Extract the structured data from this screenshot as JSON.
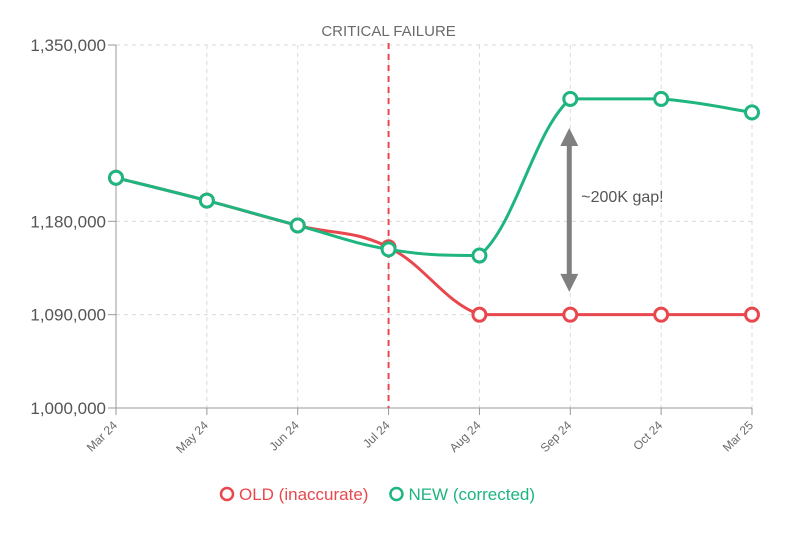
{
  "chart_data": {
    "type": "line",
    "title": "",
    "xlabel": "",
    "ylabel": "",
    "categories": [
      "Mar 24",
      "May 24",
      "Jun 24",
      "Jul 24",
      "Aug 24",
      "Sep 24",
      "Oct 24",
      "Mar 25"
    ],
    "ylim": [
      1000000,
      1350000
    ],
    "yticks": [
      1000000,
      1090000,
      1180000,
      1350000
    ],
    "ytick_labels": [
      "1,000,000",
      "1,090,000",
      "1,180,000",
      "1,350,000"
    ],
    "grid": true,
    "series": [
      {
        "name": "OLD (inaccurate)",
        "color": "#e8484d",
        "values": [
          1222000,
          1200000,
          1176000,
          1155000,
          1090000,
          1090000,
          1090000,
          1090000
        ]
      },
      {
        "name": "NEW (corrected)",
        "color": "#1fb57f",
        "values": [
          1222000,
          1200000,
          1176000,
          1153000,
          1147000,
          1298000,
          1298000,
          1285000
        ]
      }
    ],
    "annotations": {
      "vertical_line_category": "Jul 24",
      "vertical_line_label": "CRITICAL FAILURE",
      "vertical_line_color": "#e8484d",
      "gap_arrow_category_offset": "between Aug 24 and Sep 24",
      "gap_arrow_range": [
        1112000,
        1270000
      ],
      "gap_label": "~200K gap!",
      "arrow_color": "#808080"
    },
    "legend": {
      "placement": "bottom-center",
      "items": [
        "OLD (inaccurate)",
        "NEW (corrected)"
      ]
    }
  }
}
